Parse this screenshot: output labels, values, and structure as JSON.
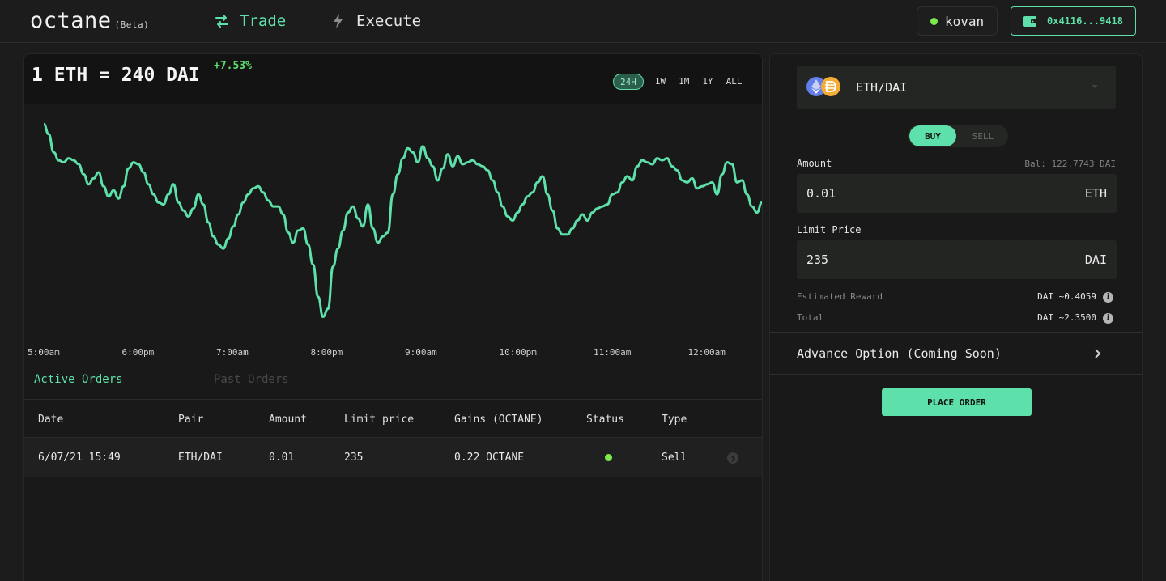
{
  "header": {
    "logo": "octane",
    "logo_tag": "(Beta)",
    "nav": [
      {
        "label": "Trade",
        "icon": "swap-arrows-icon",
        "active": true
      },
      {
        "label": "Execute",
        "icon": "lightning-icon",
        "active": false
      }
    ],
    "network": {
      "label": "kovan",
      "status_color": "#7bea4a"
    },
    "wallet": {
      "address": "0x4116...9418",
      "icon": "wallet-icon"
    }
  },
  "price_panel": {
    "title": "1 ETH = 240 DAI",
    "change": "+7.53%",
    "ranges": [
      {
        "label": "24H",
        "active": true
      },
      {
        "label": "1W",
        "active": false
      },
      {
        "label": "1M",
        "active": false
      },
      {
        "label": "1Y",
        "active": false
      },
      {
        "label": "ALL",
        "active": false
      }
    ]
  },
  "chart_data": {
    "type": "line",
    "title": "",
    "xlabel": "",
    "ylabel": "",
    "color": "#5ee0aa",
    "grid": false,
    "x_ticks": [
      "5:00am",
      "6:00pm",
      "7:00am",
      "8:00pm",
      "9:00am",
      "10:00pm",
      "11:00am",
      "12:00am"
    ],
    "ylim": [
      0,
      100
    ],
    "series": [
      {
        "values": [
          97,
          92,
          83,
          79,
          78,
          80,
          79,
          77,
          72,
          67,
          70,
          73,
          66,
          61,
          64,
          60,
          66,
          75,
          78,
          77,
          73,
          67,
          62,
          58,
          57,
          62,
          67,
          58,
          54,
          51,
          55,
          62,
          57,
          48,
          41,
          37,
          35,
          40,
          46,
          52,
          58,
          62,
          65,
          66,
          63,
          59,
          56,
          56,
          52,
          43,
          38,
          44,
          45,
          37,
          27,
          11,
          1,
          5,
          26,
          35,
          44,
          53,
          56,
          50,
          46,
          57,
          45,
          38,
          41,
          43,
          62,
          72,
          80,
          85,
          83,
          78,
          86,
          80,
          76,
          69,
          75,
          82,
          76,
          81,
          77,
          78,
          79,
          77,
          76,
          74,
          69,
          63,
          56,
          51,
          49,
          53,
          57,
          61,
          63,
          68,
          71,
          62,
          54,
          45,
          42,
          42,
          45,
          49,
          52,
          49,
          53,
          55,
          56,
          57,
          62,
          63,
          68,
          71,
          69,
          76,
          79,
          78,
          77,
          80,
          79,
          80,
          76,
          74,
          69,
          68,
          70,
          65,
          66,
          67,
          68,
          62,
          72,
          78,
          77,
          68,
          69,
          62,
          56,
          53,
          58
        ]
      }
    ]
  },
  "orders": {
    "tabs": [
      {
        "label": "Active Orders",
        "active": true
      },
      {
        "label": "Past Orders",
        "active": false
      }
    ],
    "columns": [
      "Date",
      "Pair",
      "Amount",
      "Limit price",
      "Gains (OCTANE)",
      "Status",
      "Type"
    ],
    "rows": [
      {
        "date": "6/07/21 15:49",
        "pair": "ETH/DAI",
        "amount": "0.01",
        "limit_price": "235",
        "gains": "0.22 OCTANE",
        "status_color": "#7bea4a",
        "type": "Sell"
      }
    ]
  },
  "trade_form": {
    "pair": "ETH/DAI",
    "pair_icons": [
      "eth-icon",
      "dai-icon"
    ],
    "side": {
      "buy": "BUY",
      "sell": "SELL",
      "active": "BUY"
    },
    "amount_label": "Amount",
    "balance": "Bal: 122.7743 DAI",
    "amount_value": "0.01",
    "amount_unit": "ETH",
    "limit_label": "Limit Price",
    "limit_value": "235",
    "limit_unit": "DAI",
    "estimated_reward_label": "Estimated Reward",
    "estimated_reward_value": "DAI ~0.4059",
    "total_label": "Total",
    "total_value": "DAI ~2.3500",
    "advance_label": "Advance Option (Coming Soon)",
    "place_order_label": "PLACE ORDER"
  }
}
